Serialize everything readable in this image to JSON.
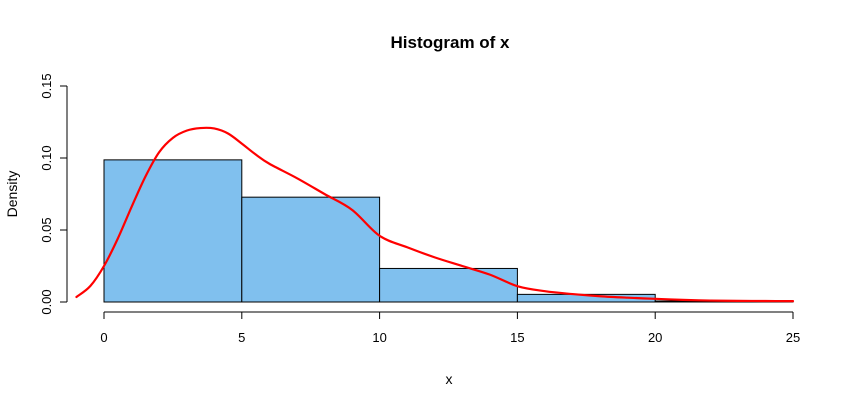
{
  "chart_data": {
    "type": "bar",
    "title": "Histogram of x",
    "xlabel": "x",
    "ylabel": "Density",
    "xlim": [
      -1,
      25
    ],
    "ylim": [
      0,
      0.15
    ],
    "x_ticks": [
      0,
      5,
      10,
      15,
      20,
      25
    ],
    "x_tick_labels": [
      "0",
      "5",
      "10",
      "15",
      "20",
      "25"
    ],
    "y_ticks": [
      0,
      0.05,
      0.1,
      0.15
    ],
    "y_tick_labels": [
      "0.00",
      "0.05",
      "0.10",
      "0.15"
    ],
    "grid": false,
    "bins": [
      {
        "from": 0,
        "to": 5,
        "density": 0.0987
      },
      {
        "from": 5,
        "to": 10,
        "density": 0.0728
      },
      {
        "from": 10,
        "to": 15,
        "density": 0.0233
      },
      {
        "from": 15,
        "to": 20,
        "density": 0.0053
      },
      {
        "from": 20,
        "to": 25,
        "density": 0.0007
      }
    ],
    "bar_color": "#80C0EE",
    "density_curve": {
      "color": "#FF0000",
      "x": [
        -1,
        -0.5,
        0,
        0.5,
        1,
        1.5,
        2,
        2.5,
        3,
        3.5,
        4,
        4.5,
        5,
        5.5,
        6,
        7,
        8,
        9,
        10,
        11,
        12,
        13,
        14,
        15,
        16,
        17,
        18,
        19,
        20,
        21,
        22,
        23,
        24,
        25
      ],
      "y": [
        0.0035,
        0.011,
        0.025,
        0.044,
        0.066,
        0.087,
        0.104,
        0.114,
        0.119,
        0.1208,
        0.1205,
        0.117,
        0.11,
        0.1025,
        0.096,
        0.086,
        0.075,
        0.064,
        0.046,
        0.038,
        0.031,
        0.025,
        0.019,
        0.011,
        0.0075,
        0.0055,
        0.004,
        0.003,
        0.0022,
        0.0015,
        0.001,
        0.0008,
        0.0007,
        0.0006
      ]
    }
  }
}
